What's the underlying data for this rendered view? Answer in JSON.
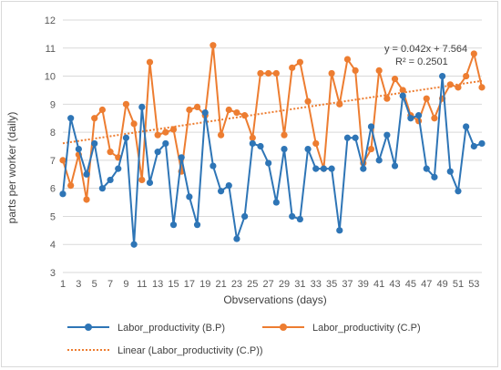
{
  "chart_data": {
    "type": "line",
    "xlabel": "Obvservations (days)",
    "ylabel": "parts per worker (daily)",
    "ylim": [
      3,
      12
    ],
    "yticks": [
      3,
      4,
      5,
      6,
      7,
      8,
      9,
      10,
      11,
      12
    ],
    "xlim": [
      1,
      54
    ],
    "xticks": [
      1,
      3,
      5,
      7,
      9,
      11,
      13,
      15,
      17,
      19,
      21,
      23,
      25,
      27,
      29,
      31,
      33,
      35,
      37,
      39,
      41,
      43,
      45,
      47,
      49,
      51,
      53
    ],
    "grid": true,
    "legend_position": "bottom",
    "series": [
      {
        "name": "Labor_productivity (B.P)",
        "color": "#2e75b6",
        "marker": "circle",
        "values": [
          5.8,
          8.5,
          7.4,
          6.5,
          7.6,
          6.0,
          6.3,
          6.7,
          7.8,
          4.0,
          8.9,
          6.2,
          7.3,
          7.6,
          4.7,
          7.1,
          5.7,
          4.7,
          8.7,
          6.8,
          5.9,
          6.1,
          4.2,
          5.0,
          7.6,
          7.5,
          6.9,
          5.5,
          7.4,
          5.0,
          4.9,
          7.4,
          6.7,
          6.7,
          6.7,
          4.5,
          7.8,
          7.8,
          6.7,
          8.2,
          7.0,
          7.9,
          6.8,
          9.3,
          8.5,
          8.6,
          6.7,
          6.4,
          10.0,
          6.6,
          5.9,
          8.2,
          7.5,
          7.6
        ]
      },
      {
        "name": "Labor_productivity (C.P)",
        "color": "#ed7d31",
        "marker": "circle",
        "values": [
          7.0,
          6.1,
          7.2,
          5.6,
          8.5,
          8.8,
          7.3,
          7.1,
          9.0,
          8.3,
          6.3,
          10.5,
          7.9,
          8.0,
          8.1,
          6.6,
          8.8,
          8.9,
          8.6,
          11.1,
          7.9,
          8.8,
          8.7,
          8.6,
          7.8,
          10.1,
          10.1,
          10.1,
          7.9,
          10.3,
          10.5,
          9.1,
          7.6,
          6.7,
          10.1,
          9.0,
          10.6,
          10.2,
          6.9,
          7.4,
          10.2,
          9.2,
          9.9,
          9.5,
          8.6,
          8.4,
          9.2,
          8.5,
          9.2,
          9.7,
          9.6,
          10.0,
          10.8,
          9.6
        ]
      },
      {
        "name": "Linear (Labor_productivity (C.P))",
        "color": "#ed7d31",
        "style": "dotted",
        "trend_slope": 0.042,
        "trend_intercept": 7.564
      }
    ],
    "annotations": [
      "y = 0.042x + 7.564",
      "R² = 0.2501"
    ]
  }
}
